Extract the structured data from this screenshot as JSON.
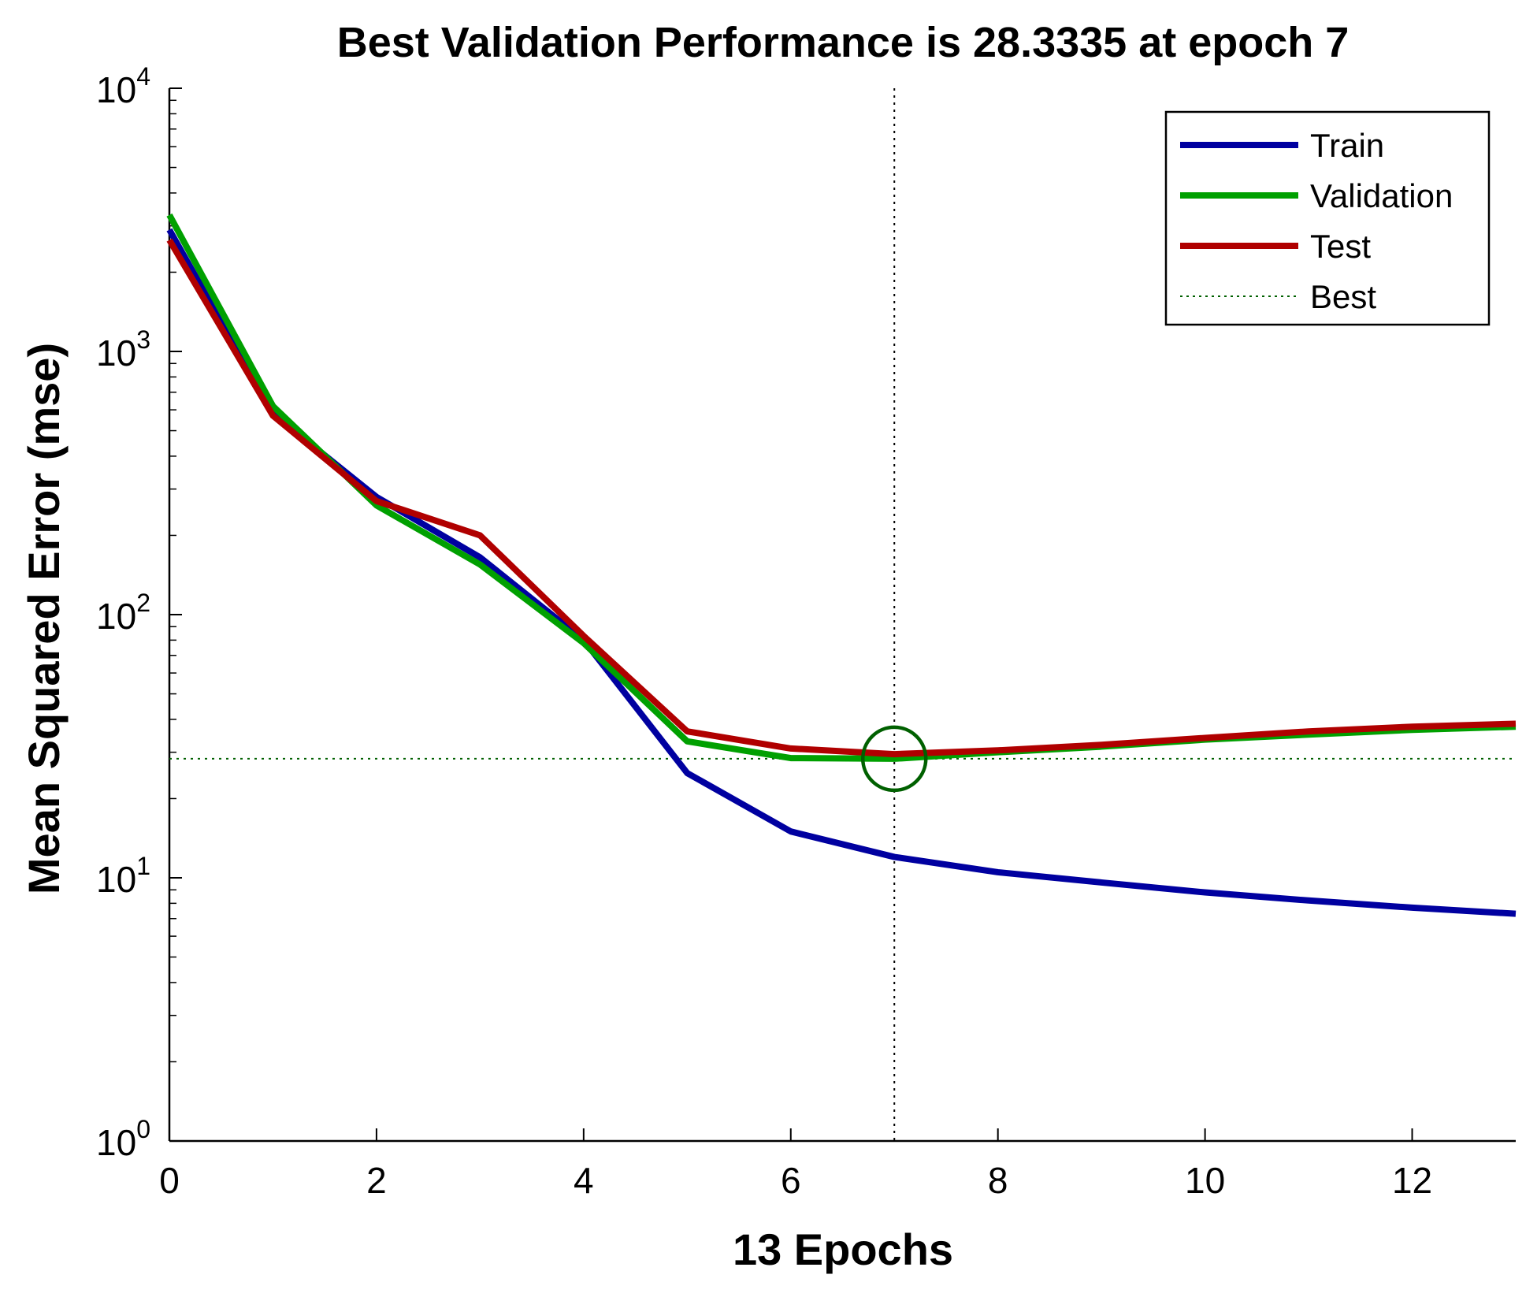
{
  "chart_data": {
    "type": "line",
    "title": "Best Validation Performance is 28.3335 at epoch 7",
    "xlabel": "13 Epochs",
    "ylabel": "Mean Squared Error  (mse)",
    "xlim": [
      0,
      13
    ],
    "ylim": [
      1,
      10000
    ],
    "yscale": "log",
    "x_ticks": [
      0,
      2,
      4,
      6,
      8,
      10,
      12
    ],
    "y_ticks": [
      {
        "value": 1,
        "base": "10",
        "exp": "0"
      },
      {
        "value": 10,
        "base": "10",
        "exp": "1"
      },
      {
        "value": 100,
        "base": "10",
        "exp": "2"
      },
      {
        "value": 1000,
        "base": "10",
        "exp": "3"
      },
      {
        "value": 10000,
        "base": "10",
        "exp": "4"
      }
    ],
    "x": [
      0,
      1,
      2,
      3,
      4,
      5,
      6,
      7,
      8,
      9,
      10,
      11,
      12,
      13
    ],
    "series": [
      {
        "name": "Train",
        "color": "#0000a0",
        "values": [
          2900,
          580,
          280,
          165,
          80,
          25,
          15,
          12,
          10.5,
          9.6,
          8.8,
          8.2,
          7.7,
          7.3
        ]
      },
      {
        "name": "Validation",
        "color": "#00a000",
        "values": [
          3300,
          620,
          260,
          155,
          78,
          33,
          28.5,
          28.3335,
          30,
          31.5,
          33.5,
          35,
          36.5,
          37.5
        ]
      },
      {
        "name": "Test",
        "color": "#b00000",
        "values": [
          2650,
          570,
          270,
          200,
          83,
          36,
          31,
          29.5,
          30.5,
          32,
          34,
          36,
          37.5,
          38.5
        ]
      }
    ],
    "best": {
      "label": "Best",
      "epoch": 7,
      "value": 28.3335,
      "color": "#006000"
    },
    "legend": {
      "placement": "top-right",
      "entries": [
        "Train",
        "Validation",
        "Test",
        "Best"
      ]
    }
  }
}
